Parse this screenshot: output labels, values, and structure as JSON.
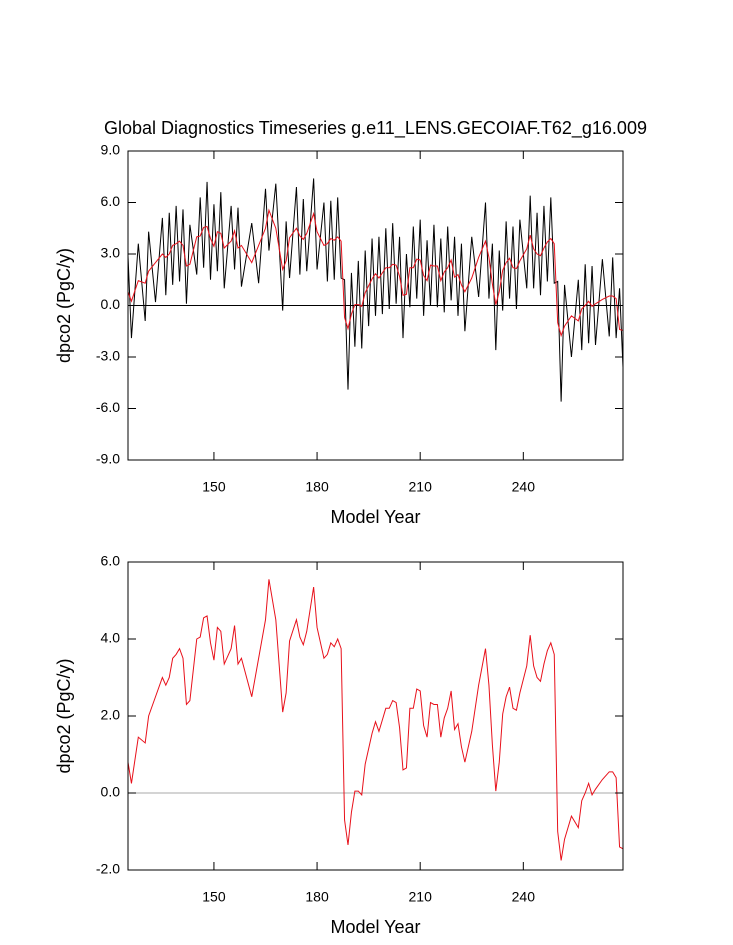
{
  "chart_data": [
    {
      "type": "line",
      "title": "Global Diagnostics Timeseries g.e11_LENS.GECOIAF.T62_g16.009",
      "y_label": "dpco2 (PgC/y)",
      "x_label": "Model Year",
      "xlim": [
        125,
        269
      ],
      "xticks": [
        150,
        180,
        210,
        240
      ],
      "ylim": [
        -9,
        9
      ],
      "yticks": [
        {
          "value": -9,
          "label": "-9.0"
        },
        {
          "value": -6,
          "label": "-6.0"
        },
        {
          "value": -3,
          "label": "-3.0"
        },
        {
          "value": 0,
          "label": "0.0"
        },
        {
          "value": 3,
          "label": "3.0"
        },
        {
          "value": 6,
          "label": "6.0"
        },
        {
          "value": 9,
          "label": "9.0"
        }
      ],
      "reference_line": {
        "value": 0,
        "color": "#000000"
      },
      "x": [
        125,
        126,
        128,
        130,
        131,
        133,
        135,
        136,
        137,
        138,
        139,
        140,
        141,
        142,
        143,
        145,
        146,
        147,
        148,
        149,
        150,
        151,
        152,
        153,
        155,
        156,
        157,
        158,
        161,
        163,
        165,
        166,
        168,
        170,
        171,
        172,
        174,
        175,
        176,
        177,
        179,
        180,
        182,
        183,
        184,
        185,
        186,
        187,
        188,
        189,
        190,
        191,
        192,
        193,
        194,
        195,
        196,
        197,
        198,
        199,
        200,
        201,
        202,
        203,
        204,
        205,
        206,
        207,
        208,
        209,
        210,
        211,
        212,
        213,
        214,
        215,
        216,
        217,
        218,
        219,
        220,
        221,
        222,
        223,
        225,
        227,
        229,
        230,
        231,
        232,
        233,
        234,
        235,
        236,
        237,
        238,
        239,
        241,
        242,
        243,
        244,
        245,
        246,
        247,
        248,
        249,
        250,
        251,
        252,
        254,
        256,
        257,
        258,
        259,
        260,
        261,
        263,
        265,
        266,
        267,
        268,
        269
      ],
      "series": [
        {
          "color": "#000000",
          "values": [
            2.9,
            -1.9,
            3.6,
            -0.9,
            4.3,
            0.2,
            5.1,
            0.6,
            5.4,
            1.2,
            5.8,
            1.4,
            5.6,
            0.1,
            4.7,
            1.8,
            6.3,
            2.2,
            7.2,
            1.5,
            5.9,
            2.0,
            6.6,
            1.0,
            5.8,
            2.1,
            5.7,
            1.1,
            4.8,
            1.3,
            6.8,
            3.2,
            7.1,
            -0.3,
            4.9,
            1.6,
            6.9,
            1.8,
            6.2,
            2.0,
            7.4,
            2.1,
            6.0,
            1.4,
            6.1,
            1.5,
            6.3,
            1.6,
            1.5,
            -4.9,
            1.9,
            -2.4,
            2.6,
            -2.5,
            3.2,
            -1.2,
            3.9,
            -0.6,
            4.0,
            -0.5,
            4.5,
            -0.2,
            4.8,
            0.1,
            4.0,
            -1.9,
            3.0,
            -0.1,
            4.6,
            0.4,
            5.0,
            -0.6,
            3.8,
            0.0,
            4.7,
            -0.1,
            3.9,
            -0.4,
            4.6,
            0.3,
            4.0,
            -0.6,
            3.6,
            -1.5,
            4.0,
            0.5,
            6.0,
            0.4,
            3.6,
            -2.6,
            3.2,
            -0.3,
            4.9,
            0.4,
            4.6,
            -0.2,
            5.0,
            1.0,
            6.4,
            1.0,
            5.4,
            0.6,
            5.8,
            1.4,
            6.3,
            1.3,
            1.4,
            -5.6,
            1.2,
            -3.0,
            1.5,
            -2.6,
            2.4,
            -2.2,
            2.3,
            -2.3,
            2.7,
            -1.8,
            2.8,
            -1.9,
            1.0,
            -3.6
          ]
        },
        {
          "color": "#e8101a",
          "values": [
            0.8,
            0.25,
            1.45,
            1.3,
            2.0,
            2.5,
            3.0,
            2.8,
            3.0,
            3.5,
            3.6,
            3.75,
            3.5,
            2.3,
            2.4,
            4.0,
            4.05,
            4.55,
            4.6,
            3.9,
            3.45,
            4.3,
            4.2,
            3.35,
            3.75,
            4.35,
            3.35,
            3.5,
            2.5,
            3.5,
            4.5,
            5.55,
            4.5,
            2.1,
            2.6,
            3.95,
            4.5,
            4.05,
            3.85,
            4.2,
            5.35,
            4.3,
            3.5,
            3.6,
            3.9,
            3.8,
            4.0,
            3.75,
            -0.7,
            -1.35,
            -0.5,
            0.05,
            0.05,
            -0.05,
            0.75,
            1.15,
            1.55,
            1.85,
            1.6,
            1.9,
            2.2,
            2.2,
            2.4,
            2.35,
            1.7,
            0.6,
            0.65,
            2.2,
            2.2,
            2.7,
            2.65,
            1.75,
            1.45,
            2.35,
            2.3,
            2.3,
            1.45,
            1.95,
            2.2,
            2.65,
            1.65,
            1.8,
            1.2,
            0.8,
            1.6,
            2.8,
            3.75,
            2.8,
            1.25,
            0.05,
            0.8,
            2.05,
            2.5,
            2.75,
            2.2,
            2.15,
            2.6,
            3.3,
            4.1,
            3.3,
            3.0,
            2.9,
            3.35,
            3.7,
            3.9,
            3.6,
            -1.0,
            -1.75,
            -1.2,
            -0.6,
            -0.9,
            -0.2,
            0.0,
            0.25,
            -0.05,
            0.1,
            0.35,
            0.55,
            0.55,
            0.4,
            -1.4,
            -1.45
          ]
        }
      ]
    },
    {
      "type": "line",
      "y_label": "dpco2 (PgC/y)",
      "x_label": "Model Year",
      "xlim": [
        125,
        269
      ],
      "xticks": [
        150,
        180,
        210,
        240
      ],
      "ylim": [
        -2,
        6
      ],
      "yticks": [
        {
          "value": -2,
          "label": "-2.0"
        },
        {
          "value": 0,
          "label": "0.0"
        },
        {
          "value": 2,
          "label": "2.0"
        },
        {
          "value": 4,
          "label": "4.0"
        },
        {
          "value": 6,
          "label": "6.0"
        }
      ],
      "reference_line": {
        "value": 0,
        "color": "#aaaaaa"
      },
      "x": [
        125,
        126,
        128,
        130,
        131,
        133,
        135,
        136,
        137,
        138,
        139,
        140,
        141,
        142,
        143,
        145,
        146,
        147,
        148,
        149,
        150,
        151,
        152,
        153,
        155,
        156,
        157,
        158,
        161,
        163,
        165,
        166,
        168,
        170,
        171,
        172,
        174,
        175,
        176,
        177,
        179,
        180,
        182,
        183,
        184,
        185,
        186,
        187,
        188,
        189,
        190,
        191,
        192,
        193,
        194,
        195,
        196,
        197,
        198,
        199,
        200,
        201,
        202,
        203,
        204,
        205,
        206,
        207,
        208,
        209,
        210,
        211,
        212,
        213,
        214,
        215,
        216,
        217,
        218,
        219,
        220,
        221,
        222,
        223,
        225,
        227,
        229,
        230,
        231,
        232,
        233,
        234,
        235,
        236,
        237,
        238,
        239,
        241,
        242,
        243,
        244,
        245,
        246,
        247,
        248,
        249,
        250,
        251,
        252,
        254,
        256,
        257,
        258,
        259,
        260,
        261,
        263,
        265,
        266,
        267,
        268,
        269
      ],
      "series": [
        {
          "color": "#e8101a",
          "values": [
            0.8,
            0.25,
            1.45,
            1.3,
            2.0,
            2.5,
            3.0,
            2.8,
            3.0,
            3.5,
            3.6,
            3.75,
            3.5,
            2.3,
            2.4,
            4.0,
            4.05,
            4.55,
            4.6,
            3.9,
            3.45,
            4.3,
            4.2,
            3.35,
            3.75,
            4.35,
            3.35,
            3.5,
            2.5,
            3.5,
            4.5,
            5.55,
            4.5,
            2.1,
            2.6,
            3.95,
            4.5,
            4.05,
            3.85,
            4.2,
            5.35,
            4.3,
            3.5,
            3.6,
            3.9,
            3.8,
            4.0,
            3.75,
            -0.7,
            -1.35,
            -0.5,
            0.05,
            0.05,
            -0.05,
            0.75,
            1.15,
            1.55,
            1.85,
            1.6,
            1.9,
            2.2,
            2.2,
            2.4,
            2.35,
            1.7,
            0.6,
            0.65,
            2.2,
            2.2,
            2.7,
            2.65,
            1.75,
            1.45,
            2.35,
            2.3,
            2.3,
            1.45,
            1.95,
            2.2,
            2.65,
            1.65,
            1.8,
            1.2,
            0.8,
            1.6,
            2.8,
            3.75,
            2.8,
            1.25,
            0.05,
            0.8,
            2.05,
            2.5,
            2.75,
            2.2,
            2.15,
            2.6,
            3.3,
            4.1,
            3.3,
            3.0,
            2.9,
            3.35,
            3.7,
            3.9,
            3.6,
            -1.0,
            -1.75,
            -1.2,
            -0.6,
            -0.9,
            -0.2,
            0.0,
            0.25,
            -0.05,
            0.1,
            0.35,
            0.55,
            0.55,
            0.4,
            -1.4,
            -1.45
          ]
        }
      ]
    }
  ]
}
